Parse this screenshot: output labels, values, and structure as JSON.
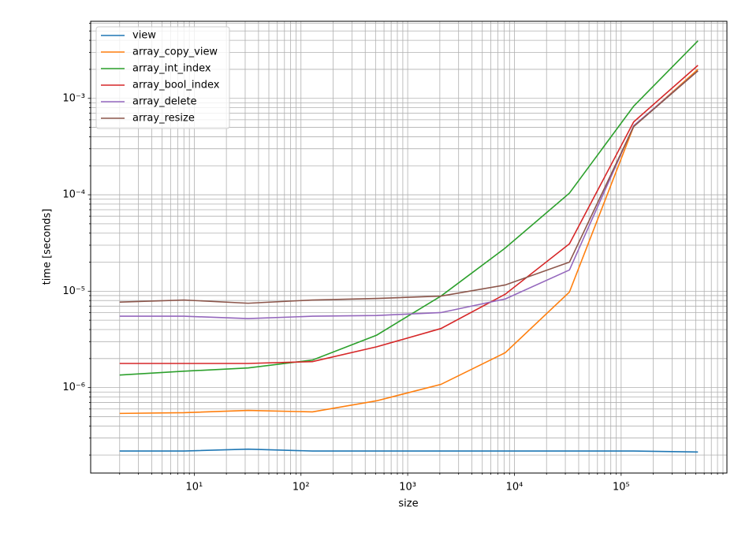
{
  "chart_data": {
    "type": "line",
    "xlabel": "size",
    "ylabel": "time [seconds]",
    "xscale": "log",
    "yscale": "log",
    "grid": "both",
    "legend": "upper left",
    "x": [
      2,
      8,
      32,
      128,
      512,
      2048,
      8192,
      32768,
      131072,
      524288
    ],
    "series": [
      {
        "name": "view",
        "color": "#1f77b4",
        "values": [
          2.2e-07,
          2.2e-07,
          2.3e-07,
          2.2e-07,
          2.2e-07,
          2.2e-07,
          2.2e-07,
          2.2e-07,
          2.2e-07,
          2.15e-07
        ]
      },
      {
        "name": "array_copy_view",
        "color": "#ff7f0e",
        "values": [
          5.4e-07,
          5.5e-07,
          5.8e-07,
          5.6e-07,
          7.3e-07,
          1.08e-06,
          2.3e-06,
          9.8e-06,
          0.00051,
          0.002
        ]
      },
      {
        "name": "array_int_index",
        "color": "#2ca02c",
        "values": [
          1.35e-06,
          1.48e-06,
          1.6e-06,
          1.93e-06,
          3.5e-06,
          8.9e-06,
          2.8e-05,
          0.000104,
          0.00083,
          0.00395
        ]
      },
      {
        "name": "array_bool_index",
        "color": "#d62728",
        "values": [
          1.78e-06,
          1.78e-06,
          1.78e-06,
          1.86e-06,
          2.65e-06,
          4.1e-06,
          9.3e-06,
          3.1e-05,
          0.00057,
          0.0022
        ]
      },
      {
        "name": "array_delete",
        "color": "#9467bd",
        "values": [
          5.5e-06,
          5.5e-06,
          5.2e-06,
          5.5e-06,
          5.6e-06,
          6e-06,
          8.3e-06,
          1.66e-05,
          0.00052,
          0.00193
        ]
      },
      {
        "name": "array_resize",
        "color": "#8c564b",
        "values": [
          7.7e-06,
          8.1e-06,
          7.5e-06,
          8.1e-06,
          8.4e-06,
          8.9e-06,
          1.16e-05,
          2e-05,
          0.00051,
          0.00193
        ]
      }
    ],
    "xlim": [
      1.07,
      980000
    ],
    "ylim": [
      1.3e-07,
      0.0063
    ],
    "xticks": [
      {
        "value": 10,
        "label": "10¹"
      },
      {
        "value": 100,
        "label": "10²"
      },
      {
        "value": 1000,
        "label": "10³"
      },
      {
        "value": 10000,
        "label": "10⁴"
      },
      {
        "value": 100000,
        "label": "10⁵"
      }
    ],
    "yticks": [
      {
        "value": 1e-06,
        "label": "10⁻⁶"
      },
      {
        "value": 1e-05,
        "label": "10⁻⁵"
      },
      {
        "value": 0.0001,
        "label": "10⁻⁴"
      },
      {
        "value": 0.001,
        "label": "10⁻³"
      }
    ],
    "xminorticks": [
      2,
      3,
      4,
      5,
      6,
      7,
      8,
      9,
      20,
      30,
      40,
      50,
      60,
      70,
      80,
      90,
      200,
      300,
      400,
      500,
      600,
      700,
      800,
      900,
      2000,
      3000,
      4000,
      5000,
      6000,
      7000,
      8000,
      9000,
      20000,
      30000,
      40000,
      50000,
      60000,
      70000,
      80000,
      90000,
      200000,
      300000,
      400000,
      500000,
      600000,
      700000,
      800000,
      900000
    ],
    "yminorticks": [
      2e-07,
      3e-07,
      4e-07,
      5e-07,
      6e-07,
      7e-07,
      8e-07,
      9e-07,
      2e-06,
      3e-06,
      4e-06,
      5e-06,
      6e-06,
      7e-06,
      8e-06,
      9e-06,
      2e-05,
      3e-05,
      4e-05,
      5e-05,
      6e-05,
      7e-05,
      8e-05,
      9e-05,
      0.0002,
      0.0003,
      0.0004,
      0.0005,
      0.0006,
      0.0007,
      0.0008,
      0.0009,
      0.002,
      0.003,
      0.004,
      0.005,
      0.006
    ]
  }
}
